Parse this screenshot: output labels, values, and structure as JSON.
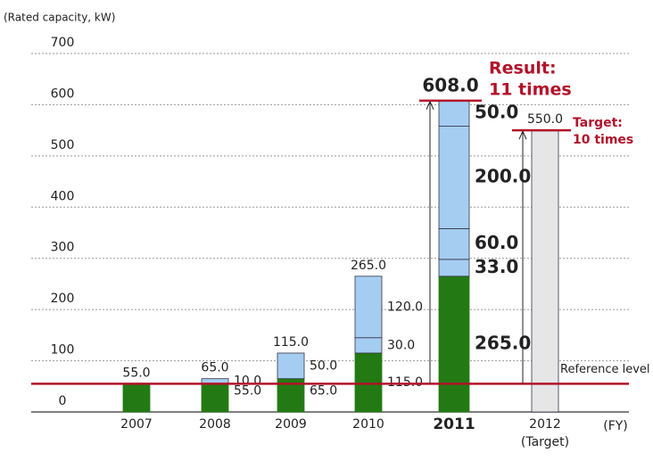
{
  "chart_data": {
    "type": "stacked_bar",
    "y_label": "(Rated capacity, kW)",
    "x_label": "(FY)",
    "categories": [
      "2007",
      "2008",
      "2009",
      "2010",
      "2011",
      "2012"
    ],
    "category_notes": [
      null,
      null,
      null,
      null,
      null,
      "(Target)"
    ],
    "bold_category": 4,
    "ylim": [
      0,
      700
    ],
    "yticks": [
      0,
      100,
      200,
      300,
      400,
      500,
      600,
      700
    ],
    "grid": true,
    "series": [
      {
        "color": "#237a14",
        "values": [
          55,
          55,
          65,
          115,
          265,
          null
        ],
        "value_labels": [
          null,
          "55.0",
          "65.0",
          "115.0",
          "265.0",
          null
        ]
      },
      {
        "color": "#a5cdf2",
        "values": [
          null,
          10,
          50,
          30,
          33,
          null
        ],
        "value_labels": [
          null,
          "10.0",
          "50.0",
          "30.0",
          "33.0",
          null
        ]
      },
      {
        "color": "#a5cdf2",
        "values": [
          null,
          null,
          null,
          120,
          60,
          null
        ],
        "value_labels": [
          null,
          null,
          null,
          "120.0",
          "60.0",
          null
        ]
      },
      {
        "color": "#a5cdf2",
        "values": [
          null,
          null,
          null,
          null,
          200,
          null
        ],
        "value_labels": [
          null,
          null,
          null,
          null,
          "200.0",
          null
        ]
      },
      {
        "color": "#a5cdf2",
        "values": [
          null,
          null,
          null,
          null,
          50,
          null
        ],
        "value_labels": [
          null,
          null,
          null,
          null,
          "50.0",
          null
        ]
      },
      {
        "color": "#e6e6e6",
        "values": [
          null,
          null,
          null,
          null,
          null,
          550
        ],
        "value_labels": [
          null,
          null,
          null,
          null,
          null,
          null
        ]
      }
    ],
    "totals": [
      55,
      65,
      115,
      265,
      608,
      550
    ],
    "total_labels": [
      "55.0",
      "65.0",
      "115.0",
      "265.0",
      "608.0",
      "550.0"
    ],
    "reference": {
      "value": 55,
      "label": "Reference level",
      "color": "#b3122a"
    },
    "annotations": [
      {
        "index": 4,
        "lines": [
          "Result:",
          "11 times"
        ]
      },
      {
        "index": 5,
        "lines": [
          "Target:",
          "10 times"
        ]
      }
    ]
  }
}
